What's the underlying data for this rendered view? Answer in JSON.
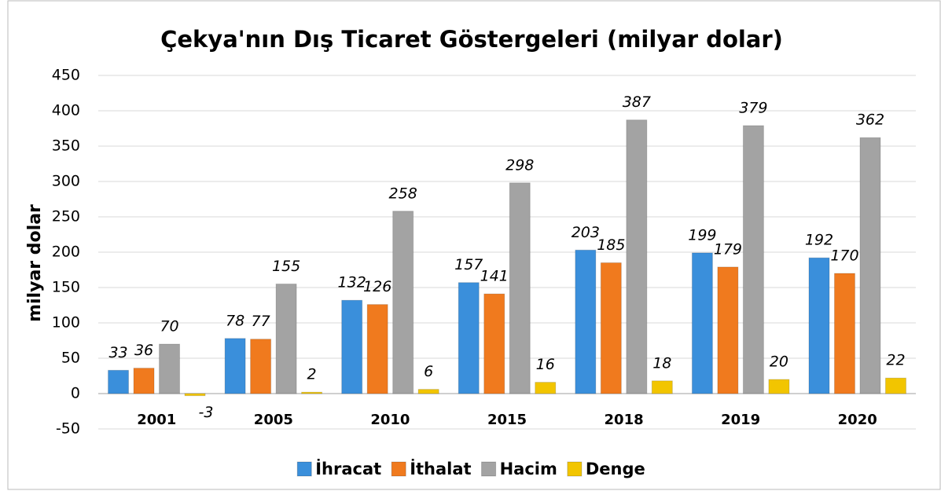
{
  "chart_data": {
    "type": "bar",
    "title": "Çekya'nın Dış Ticaret Göstergeleri (milyar dolar)",
    "y_label": "milyar dolar",
    "categories": [
      "2001",
      "2005",
      "2010",
      "2015",
      "2018",
      "2019",
      "2020"
    ],
    "series": [
      {
        "name": "İhracat",
        "color": "#3a8fdb",
        "values": [
          33,
          78,
          132,
          157,
          203,
          199,
          192
        ]
      },
      {
        "name": "İthalat",
        "color": "#f07a1e",
        "values": [
          36,
          77,
          126,
          141,
          185,
          179,
          170
        ]
      },
      {
        "name": "Hacim",
        "color": "#a3a3a3",
        "values": [
          70,
          155,
          258,
          298,
          387,
          379,
          362
        ]
      },
      {
        "name": "Denge",
        "color": "#f2c500",
        "values": [
          -3,
          2,
          6,
          16,
          18,
          20,
          22
        ]
      }
    ],
    "ylim": [
      -50,
      450
    ],
    "yticks": [
      -50,
      0,
      50,
      100,
      150,
      200,
      250,
      300,
      350,
      400,
      450
    ],
    "grid": true,
    "legend": "bottom"
  }
}
